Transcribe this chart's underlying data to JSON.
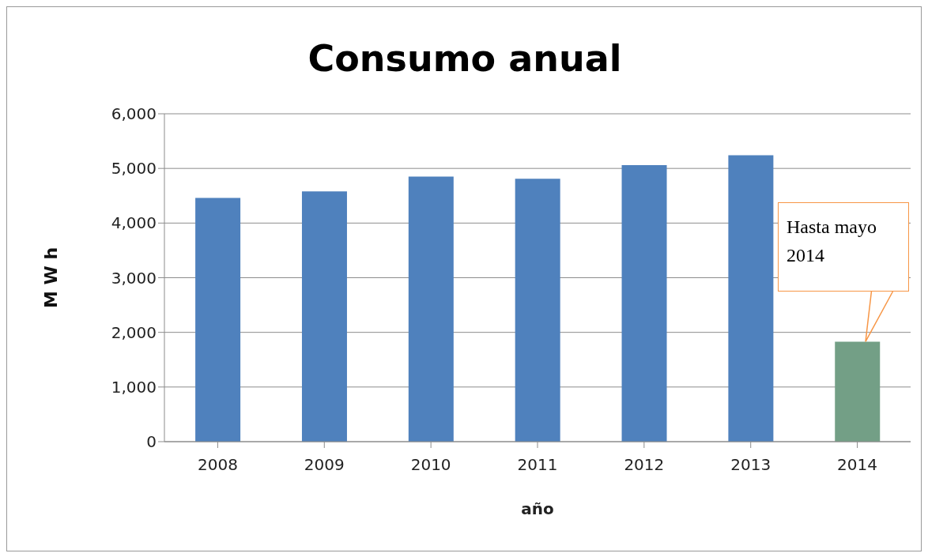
{
  "chart_data": {
    "type": "bar",
    "title": "Consumo anual",
    "xlabel": "año",
    "ylabel": "M W h",
    "categories": [
      "2008",
      "2009",
      "2010",
      "2011",
      "2012",
      "2013",
      "2014"
    ],
    "values": [
      4460,
      4580,
      4850,
      4810,
      5060,
      5240,
      1830
    ],
    "colors": [
      "#4f81bd",
      "#4f81bd",
      "#4f81bd",
      "#4f81bd",
      "#4f81bd",
      "#4f81bd",
      "#739f86"
    ],
    "ylim": [
      0,
      6000
    ],
    "yticks": [
      0,
      {
        "value": 1000,
        "label": "1,000"
      },
      {
        "value": 2000,
        "label": "2,000"
      },
      {
        "value": 3000,
        "label": "3,000"
      },
      {
        "value": 4000,
        "label": "4,000"
      },
      {
        "value": 5000,
        "label": "5,000"
      },
      {
        "value": 6000,
        "label": "6,000"
      }
    ],
    "grid": "y",
    "legend": false,
    "annotations": [
      "Hasta mayo 2014"
    ]
  }
}
